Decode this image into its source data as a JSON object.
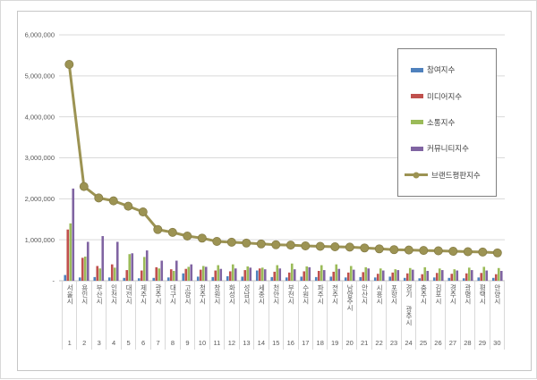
{
  "chart_data": {
    "type": "bar",
    "subtype": "grouped-bars-with-line-overlay",
    "title": "",
    "xlabel": "",
    "ylabel": "",
    "ylim": [
      0,
      6000000
    ],
    "ytick_interval": 1000000,
    "grid": true,
    "legend_position": "upper right",
    "y_ticks": [
      "-",
      "1,000,000",
      "2,000,000",
      "3,000,000",
      "4,000,000",
      "5,000,000",
      "6,000,000"
    ],
    "categories": [
      "서울시",
      "용인시",
      "부산시",
      "인천시",
      "대전시",
      "제주시",
      "광주시",
      "대구시",
      "고양시",
      "청주시",
      "창원시",
      "화성시",
      "성남시",
      "세종시",
      "천안시",
      "부천시",
      "수원시",
      "파주시",
      "전주시",
      "남양주시",
      "안산시",
      "시흥시",
      "포항시",
      "경기 광주시",
      "충주시",
      "김포시",
      "경주시",
      "광명시",
      "평택시",
      "안양시"
    ],
    "ranks": [
      "1",
      "2",
      "3",
      "4",
      "5",
      "6",
      "7",
      "8",
      "9",
      "10",
      "11",
      "12",
      "13",
      "14",
      "15",
      "16",
      "17",
      "18",
      "19",
      "20",
      "21",
      "22",
      "23",
      "24",
      "25",
      "26",
      "27",
      "28",
      "29",
      "30"
    ],
    "series": [
      {
        "name": "참여지수",
        "type": "bar",
        "color": "#4F81BD",
        "values": [
          140000,
          80000,
          90000,
          80000,
          70000,
          60000,
          70000,
          80000,
          180000,
          100000,
          90000,
          110000,
          100000,
          250000,
          90000,
          80000,
          100000,
          90000,
          100000,
          80000,
          90000,
          80000,
          100000,
          70000,
          60000,
          80000,
          70000,
          60000,
          80000,
          70000
        ]
      },
      {
        "name": "미디어지수",
        "type": "bar",
        "color": "#C0504D",
        "values": [
          1250000,
          560000,
          360000,
          400000,
          260000,
          250000,
          330000,
          280000,
          290000,
          270000,
          250000,
          230000,
          260000,
          300000,
          220000,
          200000,
          230000,
          240000,
          220000,
          200000,
          210000,
          170000,
          200000,
          180000,
          160000,
          190000,
          170000,
          180000,
          190000,
          160000
        ]
      },
      {
        "name": "소통지수",
        "type": "bar",
        "color": "#9BBB59",
        "values": [
          1400000,
          590000,
          300000,
          320000,
          650000,
          580000,
          300000,
          240000,
          340000,
          360000,
          380000,
          400000,
          350000,
          320000,
          380000,
          420000,
          350000,
          380000,
          400000,
          360000,
          330000,
          300000,
          280000,
          310000,
          330000,
          300000,
          280000,
          320000,
          340000,
          310000
        ]
      },
      {
        "name": "커뮤니티지수",
        "type": "bar",
        "color": "#8064A2",
        "values": [
          2250000,
          950000,
          1090000,
          950000,
          670000,
          740000,
          490000,
          490000,
          400000,
          340000,
          290000,
          300000,
          320000,
          280000,
          300000,
          280000,
          330000,
          260000,
          290000,
          270000,
          300000,
          250000,
          260000,
          270000,
          240000,
          260000,
          250000,
          260000,
          250000,
          240000
        ]
      },
      {
        "name": "브랜드평판지수",
        "type": "line",
        "color": "#9C9353",
        "marker": "circle",
        "values": [
          5280000,
          2300000,
          2020000,
          1950000,
          1820000,
          1680000,
          1250000,
          1180000,
          1090000,
          1040000,
          960000,
          940000,
          920000,
          900000,
          880000,
          870000,
          850000,
          840000,
          830000,
          820000,
          800000,
          780000,
          760000,
          750000,
          740000,
          730000,
          720000,
          710000,
          700000,
          680000
        ]
      }
    ]
  }
}
